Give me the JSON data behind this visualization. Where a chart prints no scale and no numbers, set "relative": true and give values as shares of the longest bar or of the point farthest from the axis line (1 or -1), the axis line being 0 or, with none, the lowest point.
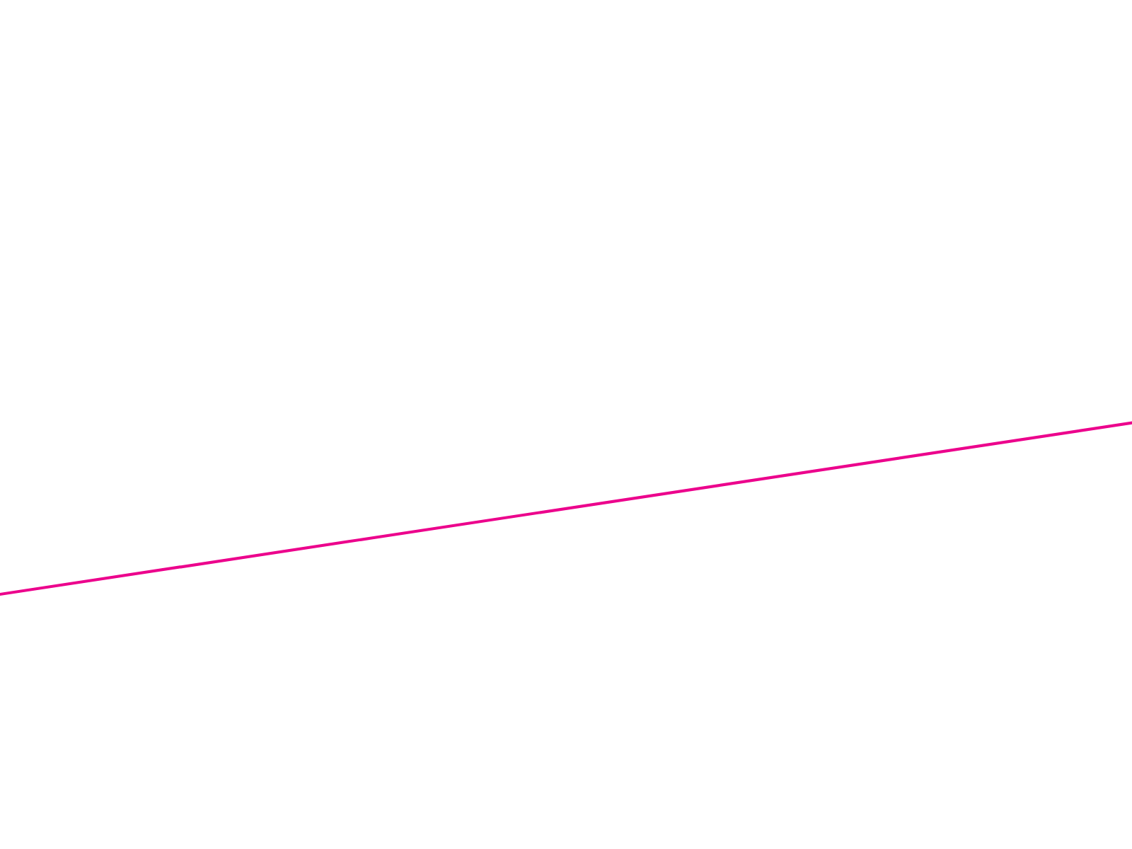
{
  "chart_data": {
    "type": "line",
    "relative": true,
    "categories": [
      null,
      null
    ],
    "series": [
      {
        "color": "#ec008c",
        "values": [
          0,
          1
        ]
      }
    ],
    "legend": false,
    "marker": "none",
    "line_style": "solid"
  }
}
